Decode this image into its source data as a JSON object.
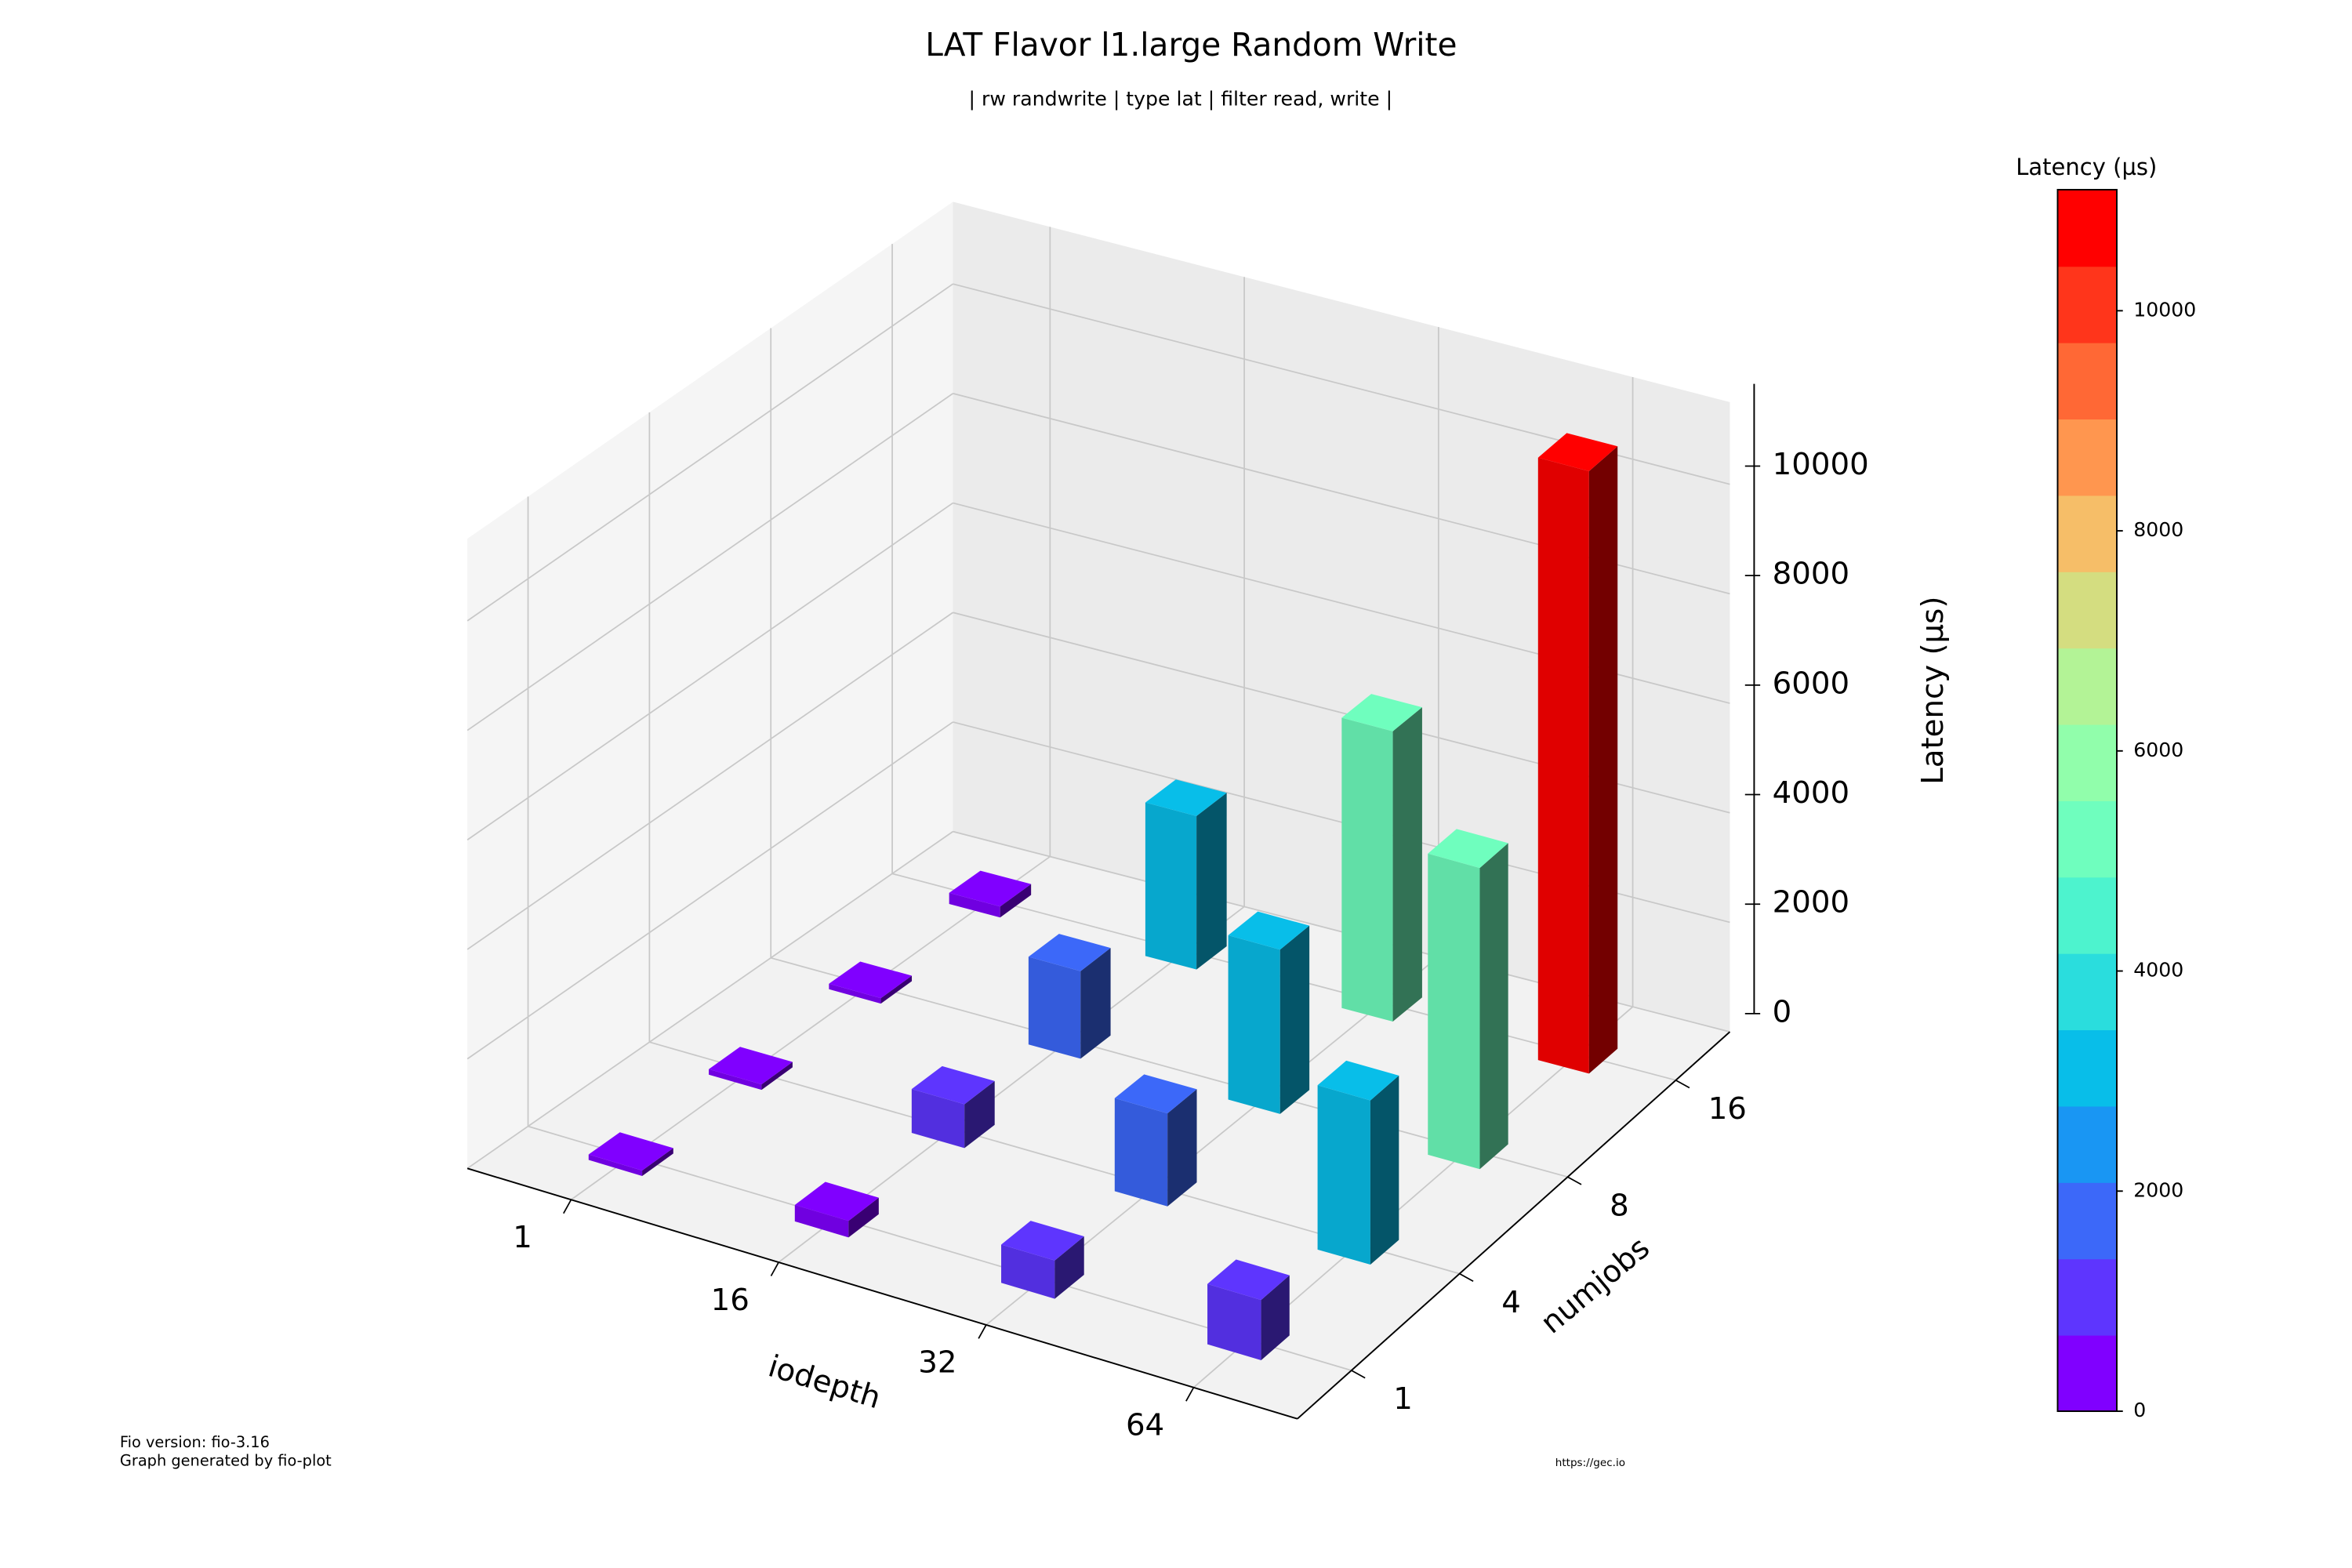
{
  "chart_data": {
    "type": "bar3d",
    "title": "LAT Flavor l1.large Random Write",
    "subtitle": "| rw randwrite | type lat | filter read, write |",
    "x_label": "iodepth",
    "y_label": "numjobs",
    "z_label": "Latency (µs)",
    "x_categories": [
      1,
      16,
      32,
      64
    ],
    "y_categories": [
      1,
      4,
      8,
      16
    ],
    "values": [
      [
        100,
        300,
        700,
        1100
      ],
      [
        100,
        800,
        1700,
        3000
      ],
      [
        100,
        1600,
        3000,
        5500
      ],
      [
        200,
        2800,
        5300,
        11000
      ]
    ],
    "zlim": [
      0,
      11500
    ],
    "zticks": [
      0,
      2000,
      4000,
      6000,
      8000,
      10000
    ],
    "grid": true,
    "colormap": "rainbow",
    "colorbar": {
      "label": "Latency (µs)",
      "lim": [
        0,
        11100
      ],
      "ticks": [
        0,
        2000,
        4000,
        6000,
        8000,
        10000
      ],
      "levels": 16
    },
    "footer_left": [
      "Fio version: fio-3.16",
      "Graph generated by fio-plot"
    ],
    "footer_right": "https://gec.io"
  }
}
